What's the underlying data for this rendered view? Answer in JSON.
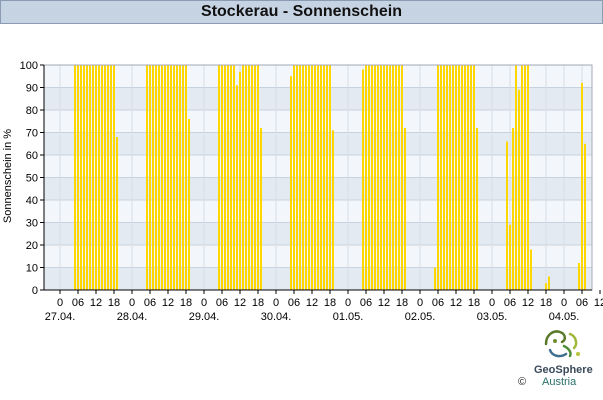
{
  "title": "Stockerau - Sonnenschein",
  "logo": {
    "name": "GeoSphere",
    "country": "Austria",
    "copyright": "©"
  },
  "chart_data": {
    "type": "bar",
    "title": "Stockerau - Sonnenschein",
    "ylabel": "Sonnenschein in %",
    "xlabel": "",
    "ylim": [
      0,
      100
    ],
    "yticks": [
      0,
      10,
      20,
      30,
      40,
      50,
      60,
      70,
      80,
      90,
      100
    ],
    "hour_ticks": [
      "0",
      "06",
      "12",
      "18"
    ],
    "days": [
      "27.04.",
      "28.04.",
      "29.04.",
      "30.04.",
      "01.05.",
      "02.05.",
      "03.05.",
      "04.05."
    ],
    "x_unit": "hour of day",
    "bar_color": "#ffd700",
    "grid": true,
    "series": [
      {
        "day": "27.04.",
        "hours": [
          5,
          6,
          7,
          8,
          9,
          10,
          11,
          12,
          13,
          14,
          15,
          16,
          17,
          18,
          19
        ],
        "values": [
          100,
          100,
          100,
          100,
          100,
          100,
          100,
          100,
          100,
          100,
          100,
          100,
          100,
          100,
          68
        ]
      },
      {
        "day": "28.04.",
        "hours": [
          5,
          6,
          7,
          8,
          9,
          10,
          11,
          12,
          13,
          14,
          15,
          16,
          17,
          18,
          19
        ],
        "values": [
          100,
          100,
          100,
          100,
          100,
          100,
          100,
          100,
          100,
          100,
          100,
          100,
          100,
          100,
          76
        ]
      },
      {
        "day": "29.04.",
        "hours": [
          5,
          6,
          7,
          8,
          9,
          10,
          11,
          12,
          13,
          14,
          15,
          16,
          17,
          18,
          19
        ],
        "values": [
          100,
          100,
          100,
          100,
          100,
          100,
          91,
          97,
          100,
          100,
          100,
          100,
          100,
          100,
          72
        ]
      },
      {
        "day": "30.04.",
        "hours": [
          5,
          6,
          7,
          8,
          9,
          10,
          11,
          12,
          13,
          14,
          15,
          16,
          17,
          18,
          19
        ],
        "values": [
          95,
          100,
          100,
          100,
          100,
          100,
          100,
          100,
          100,
          100,
          100,
          100,
          100,
          100,
          71
        ]
      },
      {
        "day": "01.05.",
        "hours": [
          5,
          6,
          7,
          8,
          9,
          10,
          11,
          12,
          13,
          14,
          15,
          16,
          17,
          18,
          19
        ],
        "values": [
          98,
          100,
          100,
          100,
          100,
          100,
          100,
          100,
          100,
          100,
          100,
          100,
          100,
          100,
          72
        ]
      },
      {
        "day": "02.05.",
        "hours": [
          5,
          6,
          7,
          8,
          9,
          10,
          11,
          12,
          13,
          14,
          15,
          16,
          17,
          18,
          19
        ],
        "values": [
          10,
          100,
          100,
          100,
          100,
          100,
          100,
          100,
          100,
          100,
          100,
          100,
          100,
          100,
          72
        ]
      },
      {
        "day": "03.05.",
        "hours": [
          5,
          6,
          7,
          8,
          9,
          10,
          11,
          12,
          13,
          14,
          15,
          16,
          17,
          18,
          19
        ],
        "values": [
          66,
          29,
          72,
          100,
          89,
          100,
          100,
          100,
          18,
          0,
          0,
          0,
          0,
          3,
          6
        ]
      },
      {
        "day": "04.05.",
        "hours": [
          5,
          6,
          7
        ],
        "values": [
          12,
          92,
          65
        ]
      }
    ]
  }
}
